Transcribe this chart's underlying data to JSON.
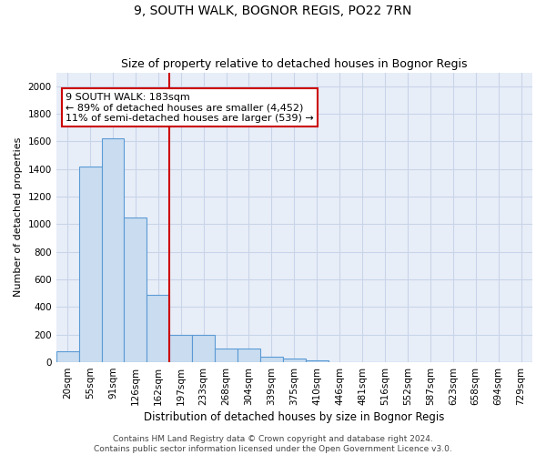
{
  "title": "9, SOUTH WALK, BOGNOR REGIS, PO22 7RN",
  "subtitle": "Size of property relative to detached houses in Bognor Regis",
  "xlabel": "Distribution of detached houses by size in Bognor Regis",
  "ylabel": "Number of detached properties",
  "categories": [
    "20sqm",
    "55sqm",
    "91sqm",
    "126sqm",
    "162sqm",
    "197sqm",
    "233sqm",
    "268sqm",
    "304sqm",
    "339sqm",
    "375sqm",
    "410sqm",
    "446sqm",
    "481sqm",
    "516sqm",
    "552sqm",
    "587sqm",
    "623sqm",
    "658sqm",
    "694sqm",
    "729sqm"
  ],
  "values": [
    80,
    1420,
    1620,
    1050,
    490,
    200,
    200,
    100,
    100,
    40,
    25,
    15,
    0,
    0,
    0,
    0,
    0,
    0,
    0,
    0,
    0
  ],
  "bar_color": "#c9dcf0",
  "bar_edge_color": "#5b9bd5",
  "grid_color": "#c8d4e8",
  "background_color": "#e8eef8",
  "annotation_text": "9 SOUTH WALK: 183sqm\n← 89% of detached houses are smaller (4,452)\n11% of semi-detached houses are larger (539) →",
  "vline_color": "#cc0000",
  "vline_pos": 5.0,
  "ylim": [
    0,
    2100
  ],
  "yticks": [
    0,
    200,
    400,
    600,
    800,
    1000,
    1200,
    1400,
    1600,
    1800,
    2000
  ],
  "footer": "Contains HM Land Registry data © Crown copyright and database right 2024.\nContains public sector information licensed under the Open Government Licence v3.0.",
  "title_fontsize": 10,
  "subtitle_fontsize": 9,
  "xlabel_fontsize": 8.5,
  "ylabel_fontsize": 8,
  "tick_fontsize": 7.5,
  "annotation_fontsize": 8,
  "footer_fontsize": 6.5
}
